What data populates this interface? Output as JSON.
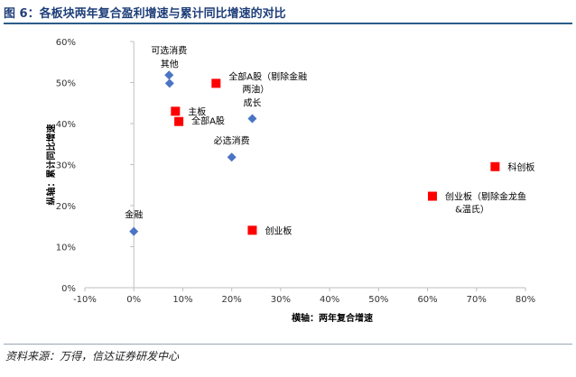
{
  "figure": {
    "title": "图 6：各板块两年复合盈利增速与累计同比增速的对比",
    "source": "资料来源：万得，信达证券研发中心"
  },
  "colors": {
    "title": "#1f3f7a",
    "rule": "#2b5c8a",
    "diamond": "#4a74c4",
    "square": "#ff0000",
    "axis": "#bfbfbf"
  },
  "chart_data": {
    "type": "scatter",
    "xlabel": "横轴：两年复合增速",
    "ylabel": "纵轴：累计同比增速",
    "xlim": [
      -10,
      80
    ],
    "ylim": [
      0,
      60
    ],
    "x_ticks": [
      "-10%",
      "0%",
      "10%",
      "20%",
      "30%",
      "40%",
      "50%",
      "60%",
      "70%",
      "80%"
    ],
    "y_ticks": [
      "0%",
      "10%",
      "20%",
      "30%",
      "40%",
      "50%",
      "60%"
    ],
    "grid": false,
    "series": [
      {
        "marker": "diamond",
        "points": [
          {
            "label": [
              "可选消费"
            ],
            "x": 7.2,
            "y": 51.8
          },
          {
            "label": [
              "其他"
            ],
            "x": 7.3,
            "y": 49.8
          },
          {
            "label": [
              "成长"
            ],
            "x": 24.2,
            "y": 41.2
          },
          {
            "label": [
              "必选消费"
            ],
            "x": 20.0,
            "y": 31.8
          },
          {
            "label": [
              "金融"
            ],
            "x": 0.0,
            "y": 13.7
          }
        ]
      },
      {
        "marker": "square",
        "points": [
          {
            "label": [
              "全部A股（剔除金融",
              "两油）"
            ],
            "x": 16.8,
            "y": 49.8
          },
          {
            "label": [
              "主板"
            ],
            "x": 8.5,
            "y": 43.0
          },
          {
            "label": [
              "全部A股"
            ],
            "x": 9.2,
            "y": 40.5
          },
          {
            "label": [
              "科创板"
            ],
            "x": 73.8,
            "y": 29.5
          },
          {
            "label": [
              "创业板（剔除金龙鱼",
              "&温氏）"
            ],
            "x": 61.0,
            "y": 22.3
          },
          {
            "label": [
              "创业板"
            ],
            "x": 24.2,
            "y": 14.0
          }
        ]
      }
    ]
  }
}
